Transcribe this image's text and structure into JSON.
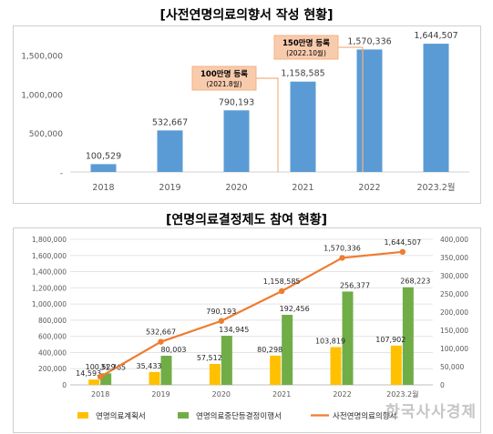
{
  "chart_data": [
    {
      "type": "bar",
      "title": "[사전연명의료의향서 작성 현황]",
      "categories": [
        "2018",
        "2019",
        "2020",
        "2021",
        "2022",
        "2023.2월"
      ],
      "values": [
        100529,
        532667,
        790193,
        1158585,
        1570336,
        1644507
      ],
      "value_labels": [
        "100,529",
        "532,667",
        "790,193",
        "1,158,585",
        "1,570,336",
        "1,644,507"
      ],
      "ylim": [
        0,
        1750000
      ],
      "yticks": [
        "-",
        "500,000",
        "1,000,000",
        "1,500,000"
      ],
      "color": "#5B9BD5",
      "grid": false,
      "callouts": [
        {
          "line1": "100만명 등록",
          "line2": "(2021.8월)",
          "category": "2021"
        },
        {
          "line1": "150만명 등록",
          "line2": "(2022.10월)",
          "category": "2022"
        }
      ]
    },
    {
      "type": "bar",
      "title": "[연명의료결정제도 참여 현황]",
      "categories": [
        "2018",
        "2019",
        "2020",
        "2021",
        "2022",
        "2023.2월"
      ],
      "ylim_left": [
        0,
        1800000
      ],
      "ylim_right": [
        0,
        400000
      ],
      "yticks_left": [
        "0",
        "200,000",
        "400,000",
        "600,000",
        "800,000",
        "1,000,000",
        "1,200,000",
        "1,400,000",
        "1,600,000",
        "1,800,000"
      ],
      "yticks_right": [
        "0",
        "50,000",
        "100,000",
        "150,000",
        "200,000",
        "250,000",
        "300,000",
        "350,000",
        "400,000"
      ],
      "grid": true,
      "series": [
        {
          "name": "연명의료계획서",
          "kind": "bar",
          "axis": "right",
          "color": "#FFC000",
          "values": [
            14593,
            35433,
            57512,
            80298,
            103819,
            107902
          ],
          "labels": [
            "14,593",
            "35,433",
            "57,512",
            "80,298",
            "103,819",
            "107,902"
          ]
        },
        {
          "name": "연명의료중단등결정이행서",
          "kind": "bar",
          "axis": "right",
          "color": "#70AD47",
          "values": [
            31765,
            80003,
            134945,
            192456,
            256377,
            268223
          ],
          "labels": [
            "31,765",
            "80,003",
            "134,945",
            "192,456",
            "256,377",
            "268,223"
          ]
        },
        {
          "name": "사전연명의료의향서",
          "kind": "line",
          "axis": "left",
          "color": "#ED7D31",
          "values": [
            100529,
            532667,
            790193,
            1158585,
            1570336,
            1644507
          ],
          "labels": [
            "100,529",
            "532,667",
            "790,193",
            "1,158,585",
            "1,570,336",
            "1,644,507"
          ]
        }
      ],
      "legend_position": "bottom"
    }
  ],
  "watermark": "한국사사경제"
}
